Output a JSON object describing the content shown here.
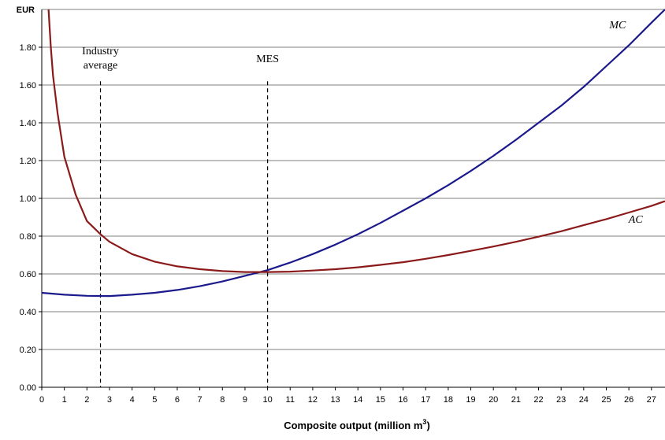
{
  "chart_data": {
    "type": "line",
    "title": "",
    "unit_label": "EUR",
    "xlabel": "Composite output (million m",
    "xlabel_sup": "3",
    "xlabel_suffix": ")",
    "xlim": [
      0,
      27.6
    ],
    "ylim": [
      0,
      2.0
    ],
    "x_ticks": [
      0,
      1,
      2,
      3,
      4,
      5,
      6,
      7,
      8,
      9,
      10,
      11,
      12,
      13,
      14,
      15,
      16,
      17,
      18,
      19,
      20,
      21,
      22,
      23,
      24,
      25,
      26,
      27
    ],
    "y_ticks": [
      0,
      0.2,
      0.4,
      0.6,
      0.8,
      1.0,
      1.2,
      1.4,
      1.6,
      1.8
    ],
    "y_tick_labels": [
      "0.00",
      "0.20",
      "0.40",
      "0.60",
      "0.80",
      "1.00",
      "1.20",
      "1.40",
      "1.60",
      "1.80"
    ],
    "grid": "horizontal",
    "series": [
      {
        "name": "MC",
        "color": "#1a1a8c",
        "x": [
          0,
          1,
          2,
          3,
          4,
          5,
          6,
          7,
          8,
          9,
          10,
          11,
          12,
          13,
          14,
          15,
          16,
          17,
          18,
          19,
          20,
          21,
          22,
          23,
          24,
          25,
          26,
          27,
          27.6
        ],
        "y": [
          0.5,
          0.49,
          0.484,
          0.483,
          0.49,
          0.5,
          0.515,
          0.535,
          0.56,
          0.59,
          0.62,
          0.66,
          0.705,
          0.755,
          0.81,
          0.87,
          0.935,
          1.0,
          1.07,
          1.145,
          1.225,
          1.31,
          1.4,
          1.49,
          1.59,
          1.7,
          1.81,
          1.93,
          2.0
        ]
      },
      {
        "name": "AC",
        "color": "#8b1a1a",
        "x": [
          0.3,
          0.4,
          0.5,
          0.7,
          1.0,
          1.5,
          2.0,
          2.6,
          3.0,
          4.0,
          5.0,
          6.0,
          7.0,
          8.0,
          9.0,
          10.0,
          11.0,
          12.0,
          13.0,
          14.0,
          15.0,
          16.0,
          17.0,
          18.0,
          19.0,
          20.0,
          21.0,
          22.0,
          23.0,
          24.0,
          25.0,
          26.0,
          27.0,
          27.6
        ],
        "y": [
          2.0,
          1.8,
          1.65,
          1.45,
          1.22,
          1.02,
          0.88,
          0.81,
          0.77,
          0.705,
          0.665,
          0.64,
          0.625,
          0.615,
          0.61,
          0.61,
          0.612,
          0.618,
          0.625,
          0.635,
          0.648,
          0.662,
          0.68,
          0.7,
          0.722,
          0.745,
          0.77,
          0.797,
          0.826,
          0.858,
          0.89,
          0.925,
          0.96,
          0.985
        ]
      }
    ],
    "vlines": [
      {
        "x": 2.6,
        "label_lines": [
          "Industry",
          "average"
        ]
      },
      {
        "x": 10.0,
        "label_lines": [
          "MES"
        ]
      }
    ],
    "curve_labels": [
      {
        "text": "MC",
        "x": 25.5,
        "y": 1.9
      },
      {
        "text": "AC",
        "x": 26.3,
        "y": 0.87
      }
    ]
  }
}
